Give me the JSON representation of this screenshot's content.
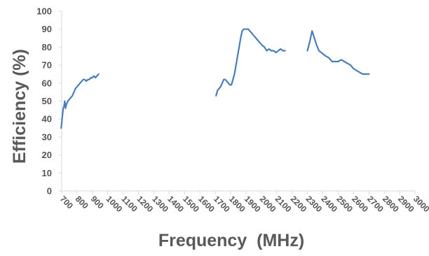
{
  "chart_data": {
    "type": "line",
    "title": "",
    "xlabel": "Frequency  (MHz)",
    "ylabel": "Efficiency  (%)",
    "xlim": [
      700,
      3000
    ],
    "ylim": [
      0,
      100
    ],
    "x_ticks": [
      "700",
      "800",
      "900",
      "1000",
      "1100",
      "1200",
      "1300",
      "1400",
      "1500",
      "1600",
      "1700",
      "1800",
      "1900",
      "2000",
      "2100",
      "2200",
      "2300",
      "2400",
      "2500",
      "2600",
      "2700",
      "2800",
      "2900",
      "3000"
    ],
    "y_ticks": [
      "0",
      "10",
      "20",
      "30",
      "40",
      "50",
      "60",
      "70",
      "80",
      "90",
      "100"
    ],
    "grid": false,
    "legend": "none",
    "colors": {
      "series": "#4a7ebb",
      "axis": "#d9d9d9",
      "text": "#595959"
    },
    "series": [
      {
        "x": [
          697,
          700,
          705,
          710,
          715,
          720,
          725,
          730,
          735,
          740,
          750,
          760,
          770,
          780,
          790,
          800,
          810,
          820,
          830,
          840,
          850,
          860,
          870,
          880,
          890,
          900,
          910,
          920,
          930,
          940
        ],
        "values": [
          35,
          38,
          42,
          46,
          47,
          50,
          46,
          48,
          49,
          50,
          51,
          52,
          53,
          55,
          57,
          58,
          59,
          60,
          61,
          62,
          62,
          61,
          62,
          62,
          63,
          63,
          64,
          63,
          64,
          65
        ]
      },
      {
        "x": [
          1705,
          1715,
          1725,
          1735,
          1745,
          1755,
          1765,
          1775,
          1785,
          1795,
          1805,
          1815,
          1825,
          1835,
          1845,
          1855,
          1865,
          1875,
          1885,
          1895,
          1905,
          1915,
          1925,
          1935,
          1945,
          1955,
          1965,
          1975,
          1985,
          1995,
          2005,
          2020,
          2035,
          2050,
          2065,
          2080,
          2095,
          2110,
          2125,
          2140,
          2155
        ],
        "values": [
          53,
          56,
          57,
          58,
          60,
          62,
          62,
          61,
          60,
          59,
          59,
          62,
          65,
          70,
          75,
          80,
          85,
          89,
          90,
          90,
          90,
          90,
          89,
          88,
          87,
          86,
          85,
          84,
          83,
          82,
          81,
          80,
          78,
          79,
          78,
          78,
          77,
          78,
          79,
          78,
          78
        ]
      },
      {
        "x": [
          2300,
          2315,
          2330,
          2345,
          2360,
          2375,
          2390,
          2405,
          2420,
          2440,
          2460,
          2480,
          2500,
          2520,
          2540,
          2560,
          2580,
          2600,
          2620,
          2640,
          2660,
          2680,
          2700
        ],
        "values": [
          78,
          83,
          89,
          85,
          81,
          78,
          77,
          76,
          75,
          74,
          72,
          72,
          72,
          73,
          72,
          71,
          70,
          68,
          67,
          66,
          65,
          65,
          65
        ]
      }
    ]
  }
}
